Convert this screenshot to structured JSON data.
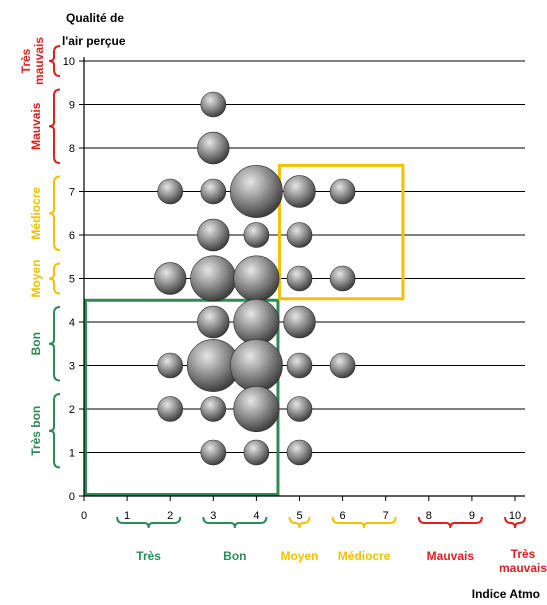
{
  "chart_data": {
    "type": "scatter",
    "bubble": true,
    "xlabel": "Indice Atmo",
    "ylabel_lines": [
      "Qualité de",
      "l'air perçue"
    ],
    "x_ticks": [
      "0",
      "1",
      "2",
      "3",
      "4",
      "5",
      "6",
      "7",
      "8",
      "9",
      "10"
    ],
    "y_ticks": [
      "0",
      "1",
      "2",
      "3",
      "4",
      "5",
      "6",
      "7",
      "8",
      "9",
      "10"
    ],
    "xlim": [
      0,
      10
    ],
    "ylim": [
      0,
      10
    ],
    "grid": "horizontal",
    "points": [
      {
        "x": 3,
        "y": 9,
        "size": 1
      },
      {
        "x": 3,
        "y": 8,
        "size": 2
      },
      {
        "x": 2,
        "y": 7,
        "size": 1
      },
      {
        "x": 3,
        "y": 7,
        "size": 1
      },
      {
        "x": 4,
        "y": 7,
        "size": 5
      },
      {
        "x": 5,
        "y": 7,
        "size": 2
      },
      {
        "x": 6,
        "y": 7,
        "size": 1
      },
      {
        "x": 3,
        "y": 6,
        "size": 2
      },
      {
        "x": 4,
        "y": 6,
        "size": 1
      },
      {
        "x": 5,
        "y": 6,
        "size": 1
      },
      {
        "x": 2,
        "y": 5,
        "size": 2
      },
      {
        "x": 3,
        "y": 5,
        "size": 4
      },
      {
        "x": 4,
        "y": 5,
        "size": 4
      },
      {
        "x": 5,
        "y": 5,
        "size": 1
      },
      {
        "x": 6,
        "y": 5,
        "size": 1
      },
      {
        "x": 3,
        "y": 4,
        "size": 2
      },
      {
        "x": 4,
        "y": 4,
        "size": 4
      },
      {
        "x": 5,
        "y": 4,
        "size": 2
      },
      {
        "x": 2,
        "y": 3,
        "size": 1
      },
      {
        "x": 3,
        "y": 3,
        "size": 5
      },
      {
        "x": 4,
        "y": 3,
        "size": 5
      },
      {
        "x": 5,
        "y": 3,
        "size": 1
      },
      {
        "x": 6,
        "y": 3,
        "size": 1
      },
      {
        "x": 2,
        "y": 2,
        "size": 1
      },
      {
        "x": 3,
        "y": 2,
        "size": 1
      },
      {
        "x": 4,
        "y": 2,
        "size": 4
      },
      {
        "x": 5,
        "y": 2,
        "size": 1
      },
      {
        "x": 3,
        "y": 1,
        "size": 1
      },
      {
        "x": 4,
        "y": 1,
        "size": 1
      },
      {
        "x": 5,
        "y": 1,
        "size": 1
      }
    ],
    "boxes": [
      {
        "name": "green",
        "x": [
          0,
          4.5
        ],
        "y": [
          0,
          4.5
        ],
        "color": "#2e8b57"
      },
      {
        "name": "yellow",
        "x": [
          4.5,
          7.4
        ],
        "y": [
          4.5,
          7.6
        ],
        "color": "#f2c200"
      }
    ],
    "y_categories": [
      {
        "label": "Très bon",
        "range": [
          1,
          2
        ],
        "color": "#2e8b57"
      },
      {
        "label": "Bon",
        "range": [
          3,
          4
        ],
        "color": "#2e8b57"
      },
      {
        "label": "Moyen",
        "range": [
          5,
          5
        ],
        "color": "#f2c200"
      },
      {
        "label": "Médiocre",
        "range": [
          6,
          7
        ],
        "color": "#f2c200"
      },
      {
        "label": "Mauvais",
        "range": [
          8,
          9
        ],
        "color": "#e02020"
      },
      {
        "label": "Très mauvais",
        "range": [
          10,
          10
        ],
        "color": "#e02020"
      }
    ],
    "x_categories": [
      {
        "label": "Très",
        "range": [
          1,
          2
        ],
        "color": "#2e8b57"
      },
      {
        "label": "Bon",
        "range": [
          3,
          4
        ],
        "color": "#2e8b57"
      },
      {
        "label": "Moyen",
        "range": [
          5,
          5
        ],
        "color": "#f2c200"
      },
      {
        "label": "Médiocre",
        "range": [
          6,
          7
        ],
        "color": "#f2c200"
      },
      {
        "label": "Mauvais",
        "range": [
          8,
          9
        ],
        "color": "#e02020"
      },
      {
        "label": "Très mauvais",
        "range": [
          10,
          10
        ],
        "color": "#e02020"
      }
    ]
  }
}
